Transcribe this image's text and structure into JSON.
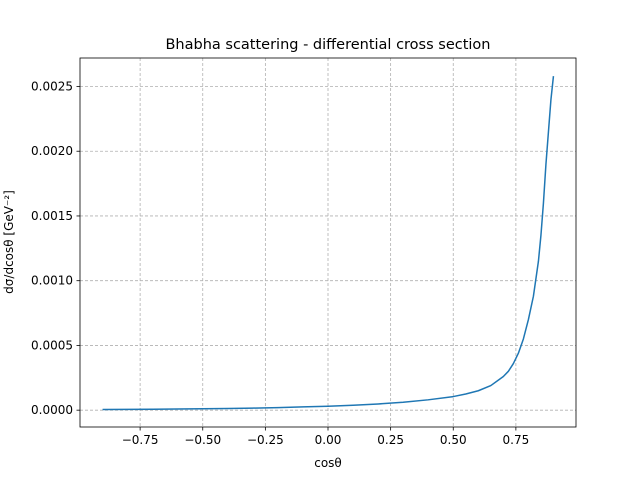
{
  "chart_data": {
    "type": "line",
    "title": "Bhabha scattering - differential cross section",
    "xlabel": "cosθ",
    "ylabel": "dσ/dcosθ   [GeV⁻²]",
    "xlim": [
      -0.99,
      0.99
    ],
    "ylim": [
      -0.00013,
      0.00272
    ],
    "grid": true,
    "grid_style": "dashed",
    "x_ticks": [
      -0.75,
      -0.5,
      -0.25,
      0.0,
      0.25,
      0.5,
      0.75
    ],
    "x_tick_labels": [
      "−0.75",
      "−0.50",
      "−0.25",
      "0.00",
      "0.25",
      "0.50",
      "0.75"
    ],
    "y_ticks": [
      0.0,
      0.0005,
      0.001,
      0.0015,
      0.002,
      0.0025
    ],
    "y_tick_labels": [
      "0.0000",
      "0.0005",
      "0.0010",
      "0.0015",
      "0.0020",
      "0.0025"
    ],
    "series": [
      {
        "color": "#1f77b4",
        "x": [
          -0.9,
          -0.8,
          -0.7,
          -0.6,
          -0.5,
          -0.4,
          -0.3,
          -0.2,
          -0.1,
          0.0,
          0.1,
          0.2,
          0.3,
          0.4,
          0.5,
          0.55,
          0.6,
          0.65,
          0.7,
          0.72,
          0.74,
          0.76,
          0.78,
          0.8,
          0.82,
          0.84,
          0.85,
          0.86,
          0.87,
          0.88,
          0.89,
          0.9
        ],
        "y": [
          5e-06,
          6e-06,
          7e-06,
          9e-06,
          1.1e-05,
          1.3e-05,
          1.6e-05,
          2e-05,
          2.5e-05,
          3e-05,
          3.8e-05,
          4.8e-05,
          6.1e-05,
          8e-05,
          0.000105,
          0.000125,
          0.00015,
          0.00019,
          0.00026,
          0.0003,
          0.00036,
          0.00044,
          0.00055,
          0.0007,
          0.00088,
          0.00115,
          0.00135,
          0.0016,
          0.0019,
          0.00215,
          0.0024,
          0.00258
        ]
      }
    ]
  }
}
